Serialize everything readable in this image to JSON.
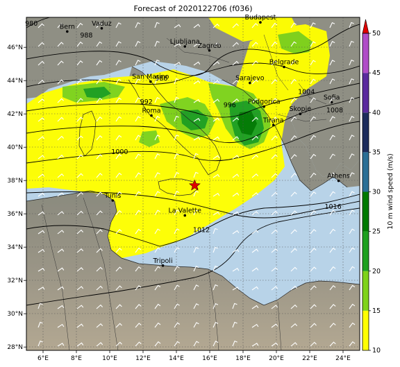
{
  "title": "Forecast of 2020122706 (f036)",
  "cities": [
    {
      "name": "Bern",
      "lon": 7.45,
      "lat": 46.95
    },
    {
      "name": "Vaduz",
      "lon": 9.52,
      "lat": 47.14
    },
    {
      "name": "Budapest",
      "lon": 19.04,
      "lat": 47.5
    },
    {
      "name": "Ljubljana",
      "lon": 14.51,
      "lat": 46.05
    },
    {
      "name": "Zagreb",
      "lon": 15.98,
      "lat": 45.81
    },
    {
      "name": "Belgrade",
      "lon": 20.46,
      "lat": 44.82
    },
    {
      "name": "San Marino",
      "lon": 12.45,
      "lat": 43.94
    },
    {
      "name": "Sarajevo",
      "lon": 18.41,
      "lat": 43.86
    },
    {
      "name": "Roma",
      "lon": 12.5,
      "lat": 41.9
    },
    {
      "name": "Podgorica",
      "lon": 19.26,
      "lat": 42.44
    },
    {
      "name": "Sofia",
      "lon": 23.32,
      "lat": 42.7
    },
    {
      "name": "Skopje",
      "lon": 21.43,
      "lat": 42.0
    },
    {
      "name": "Tirana",
      "lon": 19.82,
      "lat": 41.33
    },
    {
      "name": "Athens",
      "lon": 23.73,
      "lat": 37.98
    },
    {
      "name": "Tunis",
      "lon": 10.18,
      "lat": 36.8
    },
    {
      "name": "La Valette",
      "lon": 14.51,
      "lat": 35.9
    },
    {
      "name": "Tripoli",
      "lon": 13.19,
      "lat": 32.89
    }
  ],
  "marker": {
    "lon": 15.1,
    "lat": 37.7
  },
  "lon_ticks": [
    "6°E",
    "8°E",
    "10°E",
    "12°E",
    "14°E",
    "16°E",
    "18°E",
    "20°E",
    "22°E",
    "24°E"
  ],
  "lat_ticks": [
    "28°N",
    "30°N",
    "32°N",
    "34°N",
    "36°N",
    "38°N",
    "40°N",
    "42°N",
    "44°N",
    "46°N"
  ],
  "isobar_labels": [
    {
      "text": "980",
      "lon": 5.3,
      "lat": 47.3
    },
    {
      "text": "988",
      "lon": 8.6,
      "lat": 46.6
    },
    {
      "text": "988",
      "lon": 13.1,
      "lat": 44.0
    },
    {
      "text": "992",
      "lon": 12.2,
      "lat": 42.6
    },
    {
      "text": "996",
      "lon": 17.2,
      "lat": 42.4
    },
    {
      "text": "1000",
      "lon": 10.6,
      "lat": 39.6
    },
    {
      "text": "1004",
      "lon": 21.8,
      "lat": 43.2
    },
    {
      "text": "1008",
      "lon": 23.5,
      "lat": 42.1
    },
    {
      "text": "1012",
      "lon": 15.5,
      "lat": 34.9
    },
    {
      "text": "1016",
      "lon": 23.4,
      "lat": 36.3
    }
  ],
  "colorbar": {
    "label": "10 m wind speed (m/s)",
    "ticks": [
      "10",
      "15",
      "20",
      "25",
      "30",
      "35",
      "40",
      "45",
      "50"
    ],
    "colors": [
      "#ffff00",
      "#7fd31a",
      "#1ea01e",
      "#007a00",
      "#2b6f96",
      "#244f7a",
      "#1c2c5c",
      "#5a2a9e",
      "#9b3cb8",
      "#c050d0"
    ],
    "extend_color": "#e00000"
  },
  "chart_data": {
    "type": "map",
    "region": "Central Mediterranean",
    "lon_range": [
      5,
      25
    ],
    "lat_range": [
      27.8,
      47.8
    ],
    "field": "10 m wind speed (m/s)",
    "contours": "mean sea level pressure (hPa)",
    "marker": "red star near Sicily"
  }
}
